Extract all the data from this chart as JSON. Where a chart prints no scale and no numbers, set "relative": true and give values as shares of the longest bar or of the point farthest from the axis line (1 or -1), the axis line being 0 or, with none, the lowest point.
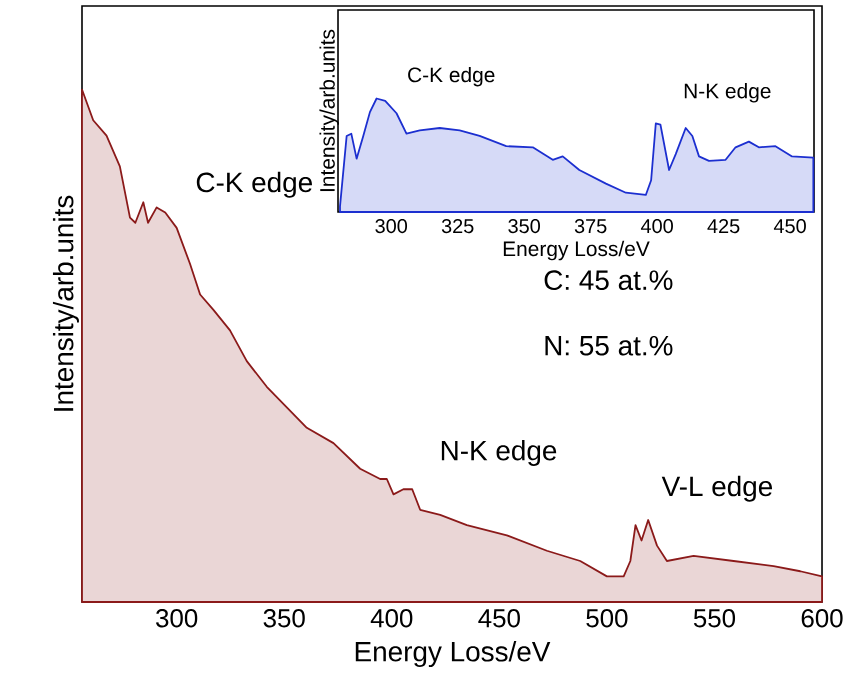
{
  "chart_data": [
    {
      "type": "area",
      "relative": true,
      "xlabel": "Energy Loss/eV",
      "ylabel": "Intensity/arb.units",
      "xlim": [
        256,
        600
      ],
      "xticks": [
        300,
        350,
        400,
        450,
        500,
        550,
        600
      ],
      "color": "#8b1a1a",
      "x": [
        256,
        261.2,
        267.4,
        273.6,
        278.3,
        280.8,
        284.5,
        286.7,
        290.7,
        294.7,
        300,
        306.2,
        310.9,
        317.1,
        324.8,
        332.6,
        341.9,
        351.2,
        360.5,
        372.9,
        385.3,
        394.6,
        397.7,
        400.8,
        405.4,
        409.5,
        413.2,
        422.5,
        434.9,
        453.5,
        472.1,
        487.6,
        500,
        507.8,
        510.9,
        513.3,
        516.1,
        519.2,
        523.3,
        527.9,
        540.3,
        558.9,
        577.5,
        589.9,
        600
      ],
      "values": [
        1.0,
        0.94,
        0.91,
        0.85,
        0.75,
        0.74,
        0.78,
        0.74,
        0.77,
        0.76,
        0.73,
        0.66,
        0.6,
        0.57,
        0.53,
        0.47,
        0.42,
        0.38,
        0.34,
        0.31,
        0.26,
        0.24,
        0.24,
        0.21,
        0.22,
        0.22,
        0.18,
        0.17,
        0.15,
        0.13,
        0.1,
        0.08,
        0.05,
        0.05,
        0.08,
        0.15,
        0.12,
        0.16,
        0.11,
        0.08,
        0.09,
        0.08,
        0.07,
        0.06,
        0.05
      ],
      "annotations": [
        "C-K edge",
        "N-K edge",
        "V-L edge",
        "C: 45 at.%",
        "N: 55 at.%"
      ]
    },
    {
      "type": "area",
      "relative": true,
      "xlabel": "Energy Loss/eV",
      "ylabel": "Intensity/arb.units",
      "xlim": [
        280,
        459
      ],
      "xticks": [
        300,
        325,
        350,
        375,
        400,
        425,
        450
      ],
      "color": "#1c2fd0",
      "x": [
        280.75,
        283.25,
        285,
        287,
        289.5,
        292,
        294.5,
        297.75,
        302,
        305.75,
        310.75,
        318.25,
        325.75,
        333.25,
        343.25,
        353.25,
        360.75,
        364.5,
        370.75,
        380.75,
        388.25,
        395.75,
        397.75,
        399.5,
        401.25,
        404.5,
        407,
        410.75,
        413.25,
        415.75,
        419.5,
        425.75,
        429.5,
        434.5,
        438.25,
        444.5,
        450.75,
        458.75
      ],
      "values": [
        0.05,
        0.67,
        0.69,
        0.47,
        0.67,
        0.88,
        1.0,
        0.98,
        0.87,
        0.69,
        0.72,
        0.74,
        0.72,
        0.67,
        0.58,
        0.57,
        0.46,
        0.49,
        0.37,
        0.25,
        0.17,
        0.15,
        0.28,
        0.78,
        0.77,
        0.37,
        0.51,
        0.74,
        0.67,
        0.49,
        0.45,
        0.46,
        0.57,
        0.62,
        0.57,
        0.58,
        0.49,
        0.48
      ],
      "annotations": [
        "C-K edge",
        "N-K edge"
      ]
    }
  ]
}
